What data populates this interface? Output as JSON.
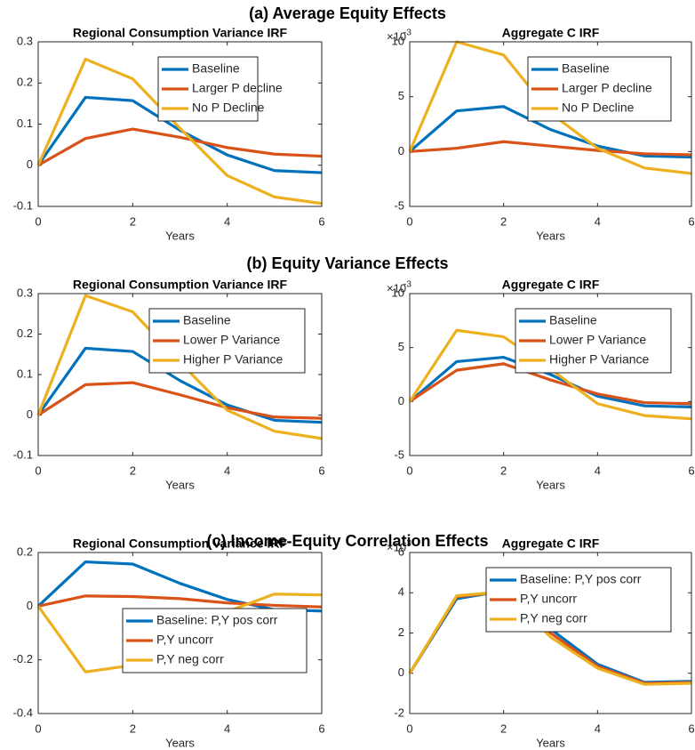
{
  "section_titles": [
    "(a) Average Equity Effects",
    "(b) Equity Variance Effects",
    "(c) Income-Equity Correlation Effects"
  ],
  "chart_data": [
    {
      "type": "line",
      "title": "Regional Consumption Variance IRF",
      "x_label": "Years",
      "x": [
        0,
        1,
        2,
        3,
        4,
        5,
        6
      ],
      "xlim": [
        0,
        6
      ],
      "xticks": [
        0,
        2,
        4,
        6
      ],
      "ylim": [
        -0.1,
        0.3
      ],
      "yticks": [
        -0.1,
        0,
        0.1,
        0.2,
        0.3
      ],
      "legend": "upper right",
      "series": [
        {
          "name": "Baseline",
          "color": "#0072BD",
          "values": [
            0,
            0.165,
            0.157,
            0.085,
            0.025,
            -0.013,
            -0.018
          ]
        },
        {
          "name": "Larger P decline",
          "color": "#D95319",
          "values": [
            0,
            0.065,
            0.088,
            0.068,
            0.043,
            0.027,
            0.022
          ]
        },
        {
          "name": "No P Decline",
          "color": "#EDB120",
          "values": [
            0,
            0.258,
            0.21,
            0.09,
            -0.025,
            -0.077,
            -0.093
          ]
        }
      ]
    },
    {
      "type": "line",
      "title": "Aggregate C IRF",
      "x_label": "Years",
      "y_multiplier_label": "×10",
      "y_multiplier_exponent": "-3",
      "x": [
        0,
        1,
        2,
        3,
        4,
        5,
        6
      ],
      "xlim": [
        0,
        6
      ],
      "xticks": [
        0,
        2,
        4,
        6
      ],
      "ylim": [
        -5,
        10
      ],
      "yticks": [
        -5,
        0,
        5,
        10
      ],
      "legend": "upper right",
      "series": [
        {
          "name": "Baseline",
          "color": "#0072BD",
          "values": [
            0,
            3.7,
            4.1,
            2.0,
            0.5,
            -0.4,
            -0.5
          ]
        },
        {
          "name": "Larger P decline",
          "color": "#D95319",
          "values": [
            0,
            0.3,
            0.9,
            0.5,
            0.1,
            -0.2,
            -0.3
          ]
        },
        {
          "name": "No P Decline",
          "color": "#EDB120",
          "values": [
            0,
            10,
            8.8,
            3.5,
            0.3,
            -1.5,
            -2
          ]
        }
      ]
    },
    {
      "type": "line",
      "title": "Regional Consumption Variance IRF",
      "x_label": "Years",
      "x": [
        0,
        1,
        2,
        3,
        4,
        5,
        6
      ],
      "xlim": [
        0,
        6
      ],
      "xticks": [
        0,
        2,
        4,
        6
      ],
      "ylim": [
        -0.1,
        0.3
      ],
      "yticks": [
        -0.1,
        0,
        0.1,
        0.2,
        0.3
      ],
      "legend": "upper right",
      "series": [
        {
          "name": "Baseline",
          "color": "#0072BD",
          "values": [
            0,
            0.165,
            0.157,
            0.085,
            0.025,
            -0.013,
            -0.018
          ]
        },
        {
          "name": "Lower P Variance",
          "color": "#D95319",
          "values": [
            0,
            0.075,
            0.08,
            0.05,
            0.018,
            -0.005,
            -0.008
          ]
        },
        {
          "name": "Higher P Variance",
          "color": "#EDB120",
          "values": [
            0,
            0.295,
            0.255,
            0.13,
            0.012,
            -0.04,
            -0.058
          ]
        }
      ]
    },
    {
      "type": "line",
      "title": "Aggregate C IRF",
      "x_label": "Years",
      "y_multiplier_label": "×10",
      "y_multiplier_exponent": "-3",
      "x": [
        0,
        1,
        2,
        3,
        4,
        5,
        6
      ],
      "xlim": [
        0,
        6
      ],
      "xticks": [
        0,
        2,
        4,
        6
      ],
      "ylim": [
        -5,
        10
      ],
      "yticks": [
        -5,
        0,
        5,
        10
      ],
      "legend": "upper right",
      "series": [
        {
          "name": "Baseline",
          "color": "#0072BD",
          "values": [
            0,
            3.7,
            4.1,
            2.5,
            0.5,
            -0.4,
            -0.5
          ]
        },
        {
          "name": "Lower P Variance",
          "color": "#D95319",
          "values": [
            0,
            2.9,
            3.5,
            2.0,
            0.7,
            -0.1,
            -0.2
          ]
        },
        {
          "name": "Higher P Variance",
          "color": "#EDB120",
          "values": [
            0,
            6.6,
            6.0,
            3.0,
            -0.2,
            -1.3,
            -1.6
          ]
        }
      ]
    },
    {
      "type": "line",
      "title": "Regional Consumption Variance IRF",
      "x_label": "Years",
      "x": [
        0,
        1,
        2,
        3,
        4,
        5,
        6
      ],
      "xlim": [
        0,
        6
      ],
      "xticks": [
        0,
        2,
        4,
        6
      ],
      "ylim": [
        -0.4,
        0.2
      ],
      "yticks": [
        -0.4,
        -0.2,
        0,
        0.2
      ],
      "legend": "lower right",
      "series": [
        {
          "name": "Baseline: P,Y pos corr",
          "color": "#0072BD",
          "values": [
            0,
            0.165,
            0.157,
            0.085,
            0.025,
            -0.013,
            -0.018
          ]
        },
        {
          "name": "P,Y uncorr",
          "color": "#D95319",
          "values": [
            0,
            0.038,
            0.036,
            0.028,
            0.012,
            0.003,
            -0.003
          ]
        },
        {
          "name": "P,Y neg corr",
          "color": "#EDB120",
          "values": [
            0,
            -0.245,
            -0.22,
            -0.12,
            -0.02,
            0.045,
            0.042
          ]
        }
      ]
    },
    {
      "type": "line",
      "title": "Aggregate C IRF",
      "x_label": "Years",
      "y_multiplier_label": "×10",
      "y_multiplier_exponent": "-3",
      "x": [
        0,
        1,
        2,
        3,
        4,
        5,
        6
      ],
      "xlim": [
        0,
        6
      ],
      "xticks": [
        0,
        2,
        4,
        6
      ],
      "ylim": [
        -2,
        6
      ],
      "yticks": [
        -2,
        0,
        2,
        4,
        6
      ],
      "legend": "upper right",
      "series": [
        {
          "name": "Baseline: P,Y pos corr",
          "color": "#0072BD",
          "values": [
            0,
            3.7,
            4.1,
            2.2,
            0.45,
            -0.45,
            -0.4
          ]
        },
        {
          "name": "P,Y uncorr",
          "color": "#D95319",
          "values": [
            0,
            3.8,
            4.05,
            2.0,
            0.35,
            -0.5,
            -0.45
          ]
        },
        {
          "name": "P,Y neg corr",
          "color": "#EDB120",
          "values": [
            0,
            3.85,
            4.05,
            1.8,
            0.25,
            -0.55,
            -0.5
          ]
        }
      ]
    }
  ]
}
